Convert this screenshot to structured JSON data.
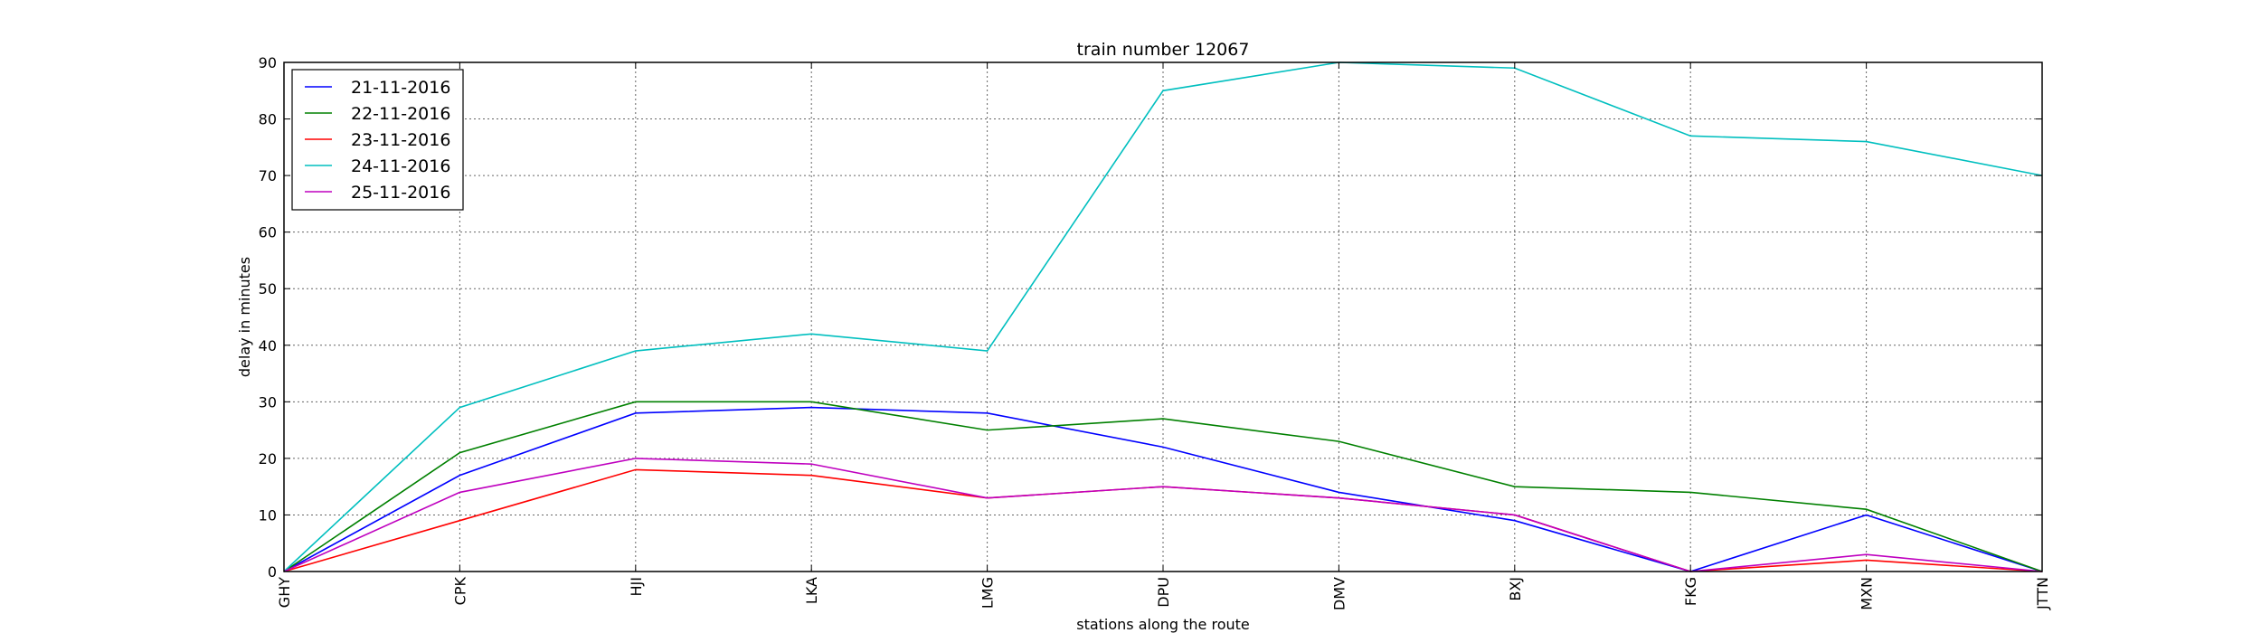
{
  "chart_data": {
    "type": "line",
    "title": "train number 12067",
    "xlabel": "stations along the route",
    "ylabel": "delay in minutes",
    "categories": [
      "GHY",
      "CPK",
      "HJI",
      "LKA",
      "LMG",
      "DPU",
      "DMV",
      "BXJ",
      "FKG",
      "MXN",
      "JTTN"
    ],
    "ylim": [
      0,
      90
    ],
    "yticks": [
      0,
      10,
      20,
      30,
      40,
      50,
      60,
      70,
      80,
      90
    ],
    "grid": true,
    "legend_position": "top-left",
    "series": [
      {
        "name": "21-11-2016",
        "color": "#0000ff",
        "values": [
          0,
          17,
          28,
          29,
          28,
          22,
          14,
          9,
          0,
          10,
          0
        ]
      },
      {
        "name": "22-11-2016",
        "color": "#008000",
        "values": [
          0,
          21,
          30,
          30,
          25,
          27,
          23,
          15,
          14,
          11,
          0
        ]
      },
      {
        "name": "23-11-2016",
        "color": "#ff0000",
        "values": [
          0,
          9,
          18,
          17,
          13,
          15,
          13,
          10,
          0,
          2,
          0
        ]
      },
      {
        "name": "24-11-2016",
        "color": "#00bfbf",
        "values": [
          0,
          29,
          39,
          42,
          39,
          85,
          90,
          89,
          77,
          76,
          70
        ]
      },
      {
        "name": "25-11-2016",
        "color": "#bf00bf",
        "values": [
          0,
          14,
          20,
          19,
          13,
          15,
          13,
          10,
          0,
          3,
          0
        ]
      }
    ]
  }
}
